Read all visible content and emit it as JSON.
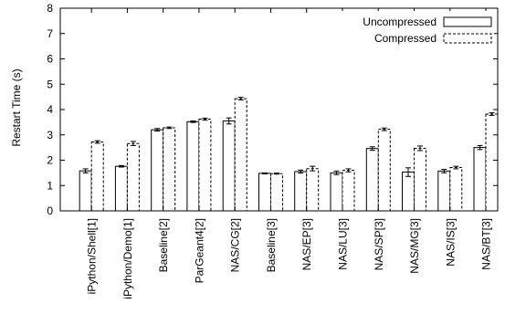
{
  "chart_data": {
    "type": "bar",
    "title": "",
    "xlabel": "",
    "ylabel": "Restart Time (s)",
    "ylim": [
      0,
      8
    ],
    "yticks": [
      "0",
      "1",
      "2",
      "3",
      "4",
      "5",
      "6",
      "7",
      "8"
    ],
    "grid": false,
    "legend_position": "top-right",
    "categories": [
      "iPython/Shell[1]",
      "iPython/Demo[1]",
      "Baseline[2]",
      "ParGeant4[2]",
      "NAS/CG[2]",
      "Baseline[3]",
      "NAS/EP[3]",
      "NAS/LU[3]",
      "NAS/SP[3]",
      "NAS/MG[3]",
      "NAS/IS[3]",
      "NAS/BT[3]"
    ],
    "series": [
      {
        "name": "Uncompressed",
        "style": "solid",
        "color": "#000000",
        "values": [
          1.58,
          1.76,
          3.2,
          3.52,
          3.55,
          1.48,
          1.55,
          1.5,
          2.46,
          1.53,
          1.57,
          2.5
        ],
        "errors": [
          0.08,
          0.03,
          0.05,
          0.03,
          0.12,
          0.02,
          0.06,
          0.07,
          0.07,
          0.17,
          0.07,
          0.08
        ]
      },
      {
        "name": "Compressed",
        "style": "dashed",
        "color": "#000000",
        "values": [
          2.72,
          2.66,
          3.28,
          3.62,
          4.43,
          1.47,
          1.67,
          1.6,
          3.22,
          2.47,
          1.71,
          3.82
        ],
        "errors": [
          0.05,
          0.08,
          0.03,
          0.04,
          0.05,
          0.02,
          0.09,
          0.06,
          0.05,
          0.09,
          0.05,
          0.05
        ]
      }
    ]
  }
}
